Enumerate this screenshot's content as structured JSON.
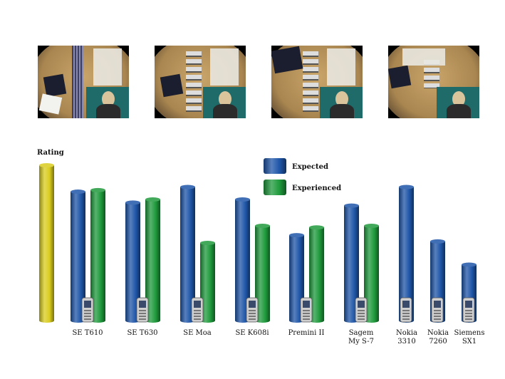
{
  "chart_data": {
    "type": "bar",
    "ylabel": "Rating",
    "ylim": [
      0,
      10
    ],
    "legend": {
      "placement": "top-center",
      "entries": [
        "Expected",
        "Experienced"
      ]
    },
    "reference": {
      "color": "#d9cc1e",
      "value": 10
    },
    "categories": [
      [
        "SE T610"
      ],
      [
        "SE T630"
      ],
      [
        "SE Moa"
      ],
      [
        "SE K608i"
      ],
      [
        "Premini II"
      ],
      [
        "Sagem",
        "My S-7"
      ],
      [
        "Nokia",
        "3310"
      ],
      [
        "Nokia",
        "7260"
      ],
      [
        "Siemens",
        "SX1"
      ]
    ],
    "series": [
      {
        "name": "Expected",
        "color": "#1f56a8",
        "values": [
          8.3,
          7.6,
          8.6,
          7.8,
          5.5,
          7.4,
          8.6,
          5.1,
          3.6
        ]
      },
      {
        "name": "Experienced",
        "color": "#1f9a3c",
        "values": [
          8.4,
          7.8,
          5.0,
          6.1,
          6.0,
          6.1,
          null,
          null,
          null
        ]
      }
    ]
  },
  "photos": {
    "count": 4
  }
}
